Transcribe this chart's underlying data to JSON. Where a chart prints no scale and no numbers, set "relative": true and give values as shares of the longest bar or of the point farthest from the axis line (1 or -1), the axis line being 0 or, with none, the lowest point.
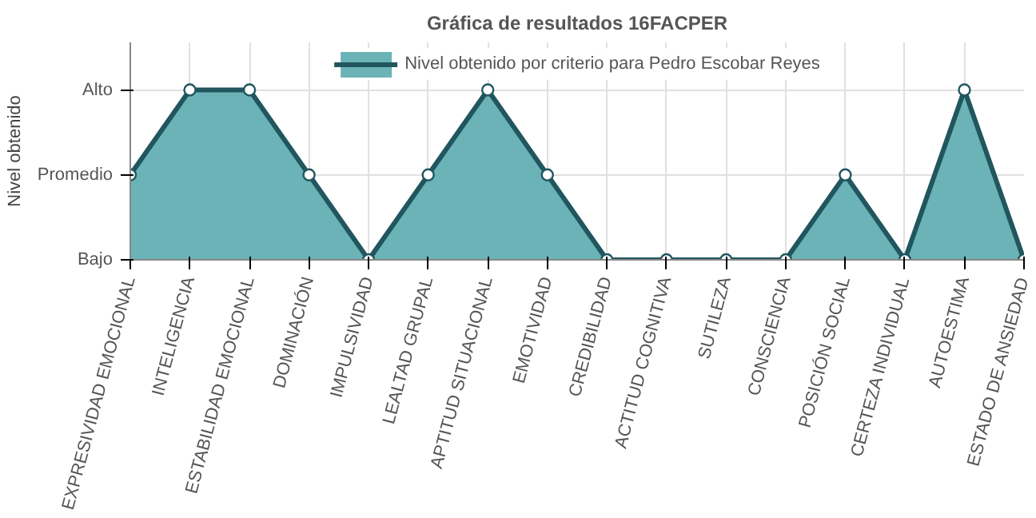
{
  "chart_data": {
    "type": "area",
    "title": "Gráfica de resultados 16FACPER",
    "ylabel": "Nivel obtenido",
    "categories": [
      "EXPRESIVIDAD EMOCIONAL",
      "INTELIGENCIA",
      "ESTABILIDAD EMOCIONAL",
      "DOMINACIÓN",
      "IMPULSIVIDAD",
      "LEALTAD GRUPAL",
      "APTITUD SITUACIONAL",
      "EMOTIVIDAD",
      "CREDIBILIDAD",
      "ACTITUD COGNITIVA",
      "SUTILEZA",
      "CONSCIENCIA",
      "POSICIÓN SOCIAL",
      "CERTEZA INDIVIDUAL",
      "AUTOESTIMA",
      "ESTADO DE ANSIEDAD"
    ],
    "series": [
      {
        "name": "Nivel obtenido por criterio para Pedro Escobar Reyes",
        "color": "#6bb3b6",
        "values": [
          0.5,
          1,
          1,
          0.5,
          0,
          0.5,
          1,
          0.5,
          0,
          0,
          0,
          0,
          0.5,
          0,
          1,
          0
        ]
      }
    ],
    "relative": true,
    "y_categories": [
      "Alto",
      "Promedio",
      "Bajo"
    ],
    "grid": true,
    "legend": "top",
    "marker": "circle",
    "line_style": "solid"
  }
}
